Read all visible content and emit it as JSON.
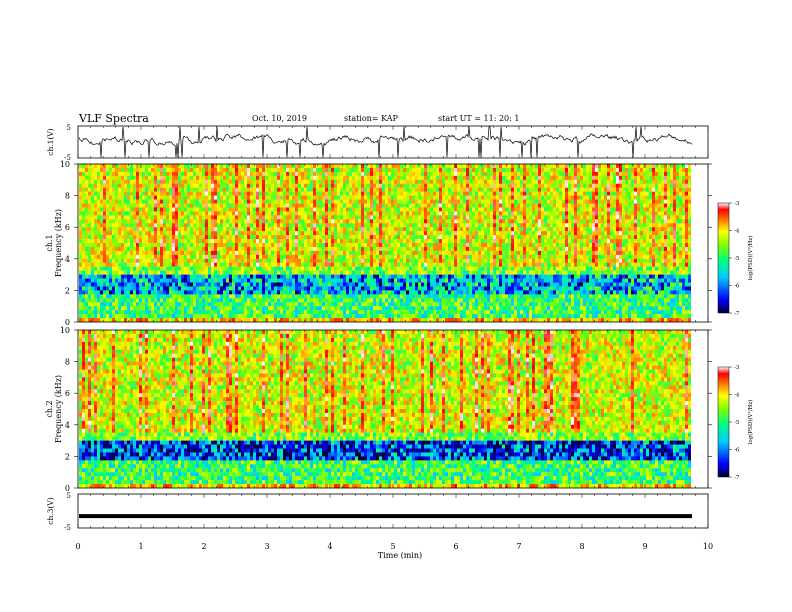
{
  "header": {
    "title": "VLF Spectra",
    "date": "Oct. 10, 2019",
    "station": "station= KAP",
    "start": "start UT =   11: 20: 1"
  },
  "chart_data": [
    {
      "type": "line",
      "panel": "ch1-waveform",
      "ylabel": "ch.1(V)",
      "ylim": [
        -5,
        5
      ],
      "yticks": [
        "5",
        "-5"
      ],
      "description_shown": "noisy waveform oscillating roughly between -1 and 3 V"
    },
    {
      "type": "heatmap",
      "panel": "ch1-spectrogram",
      "ylabel": "ch.1 Frequency (kHz)",
      "ylim": [
        0,
        10
      ],
      "yticks": [
        "0",
        "2",
        "4",
        "6",
        "8",
        "10"
      ],
      "colorbar": {
        "label": "log(PSD)(V²/Hz)",
        "range": [
          -7,
          -3
        ],
        "ticks": [
          "-3",
          "-4",
          "-5",
          "-6",
          "-7"
        ]
      }
    },
    {
      "type": "heatmap",
      "panel": "ch2-spectrogram",
      "ylabel": "ch.2 Frequency (kHz)",
      "ylim": [
        0,
        10
      ],
      "yticks": [
        "0",
        "2",
        "4",
        "6",
        "8",
        "10"
      ],
      "colorbar": {
        "label": "log(PSD)(V²/Hz)",
        "range": [
          -7,
          -3
        ],
        "ticks": [
          "-3",
          "-4",
          "-5",
          "-6",
          "-7"
        ]
      }
    },
    {
      "type": "line",
      "panel": "ch3-waveform",
      "ylabel": "ch.3(V)",
      "ylim": [
        -5,
        5
      ],
      "yticks": [
        "5",
        "-5"
      ],
      "value_shown": -1.5
    }
  ],
  "xaxis": {
    "label": "Time (min)",
    "range": [
      0,
      10
    ],
    "ticks": [
      "0",
      "1",
      "2",
      "3",
      "4",
      "5",
      "6",
      "7",
      "8",
      "9",
      "10"
    ]
  },
  "colors": {
    "colormap": [
      "#000044",
      "#0000ff",
      "#00c8ff",
      "#00ff80",
      "#80ff00",
      "#ffff00",
      "#ff8000",
      "#ff0000",
      "#ffffff"
    ]
  }
}
